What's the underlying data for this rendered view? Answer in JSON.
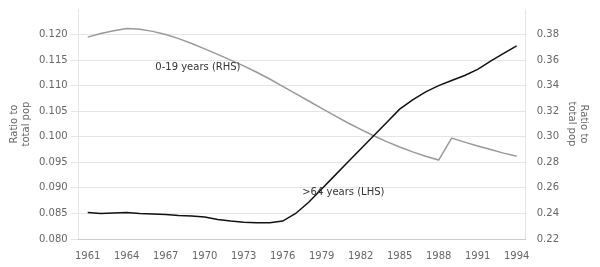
{
  "chart_data": {
    "type": "line",
    "x": [
      1961,
      1962,
      1963,
      1964,
      1965,
      1966,
      1967,
      1968,
      1969,
      1970,
      1971,
      1972,
      1973,
      1974,
      1975,
      1976,
      1977,
      1978,
      1979,
      1980,
      1981,
      1982,
      1983,
      1984,
      1985,
      1986,
      1987,
      1988,
      1989,
      1990,
      1991,
      1992,
      1993,
      1994
    ],
    "series": [
      {
        "color": "#111111",
        "values": [
          0.0852,
          0.085,
          0.0851,
          0.0852,
          0.085,
          0.0849,
          0.0848,
          0.0846,
          0.0845,
          0.0843,
          0.0838,
          0.0835,
          0.0833,
          0.0832,
          0.0832,
          0.0835,
          0.085,
          0.0872,
          0.0898,
          0.0924,
          0.095,
          0.0976,
          0.1002,
          0.1028,
          0.1054,
          0.1072,
          0.1088,
          0.11,
          0.111,
          0.112,
          0.1132,
          0.1148,
          0.1163,
          0.1178
        ]
      },
      {
        "color": "#999999",
        "axis": "y2",
        "values": [
          0.378,
          0.3808,
          0.383,
          0.3848,
          0.3842,
          0.3825,
          0.38,
          0.3768,
          0.373,
          0.3688,
          0.3645,
          0.36,
          0.3555,
          0.3505,
          0.3452,
          0.3395,
          0.3338,
          0.328,
          0.3222,
          0.3165,
          0.311,
          0.3058,
          0.3008,
          0.2962,
          0.292,
          0.2882,
          0.2848,
          0.2818,
          0.299,
          0.2958,
          0.2928,
          0.29,
          0.2872,
          0.2848
        ]
      }
    ],
    "xlim": [
      1960.3,
      1994.7
    ],
    "xticks": [
      1961,
      1964,
      1967,
      1970,
      1973,
      1976,
      1979,
      1982,
      1985,
      1988,
      1991,
      1994
    ],
    "ylim": [
      0.08,
      0.125
    ],
    "yticks": [
      {
        "value": 0.08,
        "label": "0.080"
      },
      0.085,
      {
        "value": 0.09,
        "label": "0.090"
      },
      0.095,
      {
        "value": 0.1,
        "label": "0.100"
      },
      0.105,
      {
        "value": 0.11,
        "label": "0.110"
      },
      0.115,
      {
        "value": 0.12,
        "label": "0.120"
      }
    ],
    "y2lim": [
      0.22,
      0.4
    ],
    "y2ticks": [
      0.22,
      0.24,
      0.26,
      0.28,
      {
        "value": 0.3,
        "label": "0.30"
      },
      0.32,
      0.34,
      0.36,
      0.38
    ],
    "ylabel": "Ratio to\ntotal pop",
    "y2label": "Ratio to\ntotal pop",
    "annotations": [
      {
        "text": "0-19 years (RHS)",
        "x": 1966.2,
        "y": 0.1125
      },
      {
        "text": ">64 years (LHS)",
        "x": 1977.5,
        "y": 0.0882
      }
    ],
    "grid": "y"
  }
}
